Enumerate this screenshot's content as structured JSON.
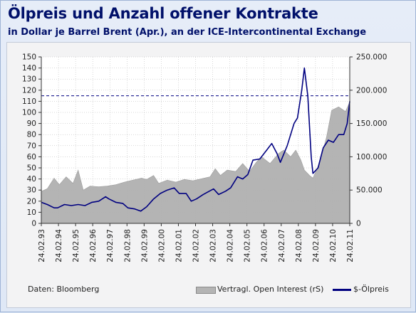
{
  "header": {
    "title": "Ölpreis und Anzahl offener Kontrakte",
    "subtitle": "in Dollar je Barrel Brent (Apr.), an der ICE-Intercontinental Exchange"
  },
  "footer": {
    "source": "Daten: Bloomberg",
    "legend_oi": "Vertragl. Open Interest (rS)",
    "legend_price": "$-Ölpreis"
  },
  "colors": {
    "price_line": "#000080",
    "oi_area": "#b4b4b4",
    "grid": "#b0b0b0",
    "reference_line": "#000080"
  },
  "chart_data": {
    "type": "line",
    "xlabel": "",
    "ylabel_left": "",
    "ylabel_right": "",
    "x_ticks": [
      "24.02.93",
      "24.02.94",
      "24.02.95",
      "24.02.96",
      "24.02.97",
      "24.02.98",
      "24.02.99",
      "24.02.00",
      "24.02.01",
      "24.02.02",
      "24.02.03",
      "24.02.04",
      "24.02.05",
      "24.02.06",
      "24.02.07",
      "24.02.08",
      "24.02.09",
      "24.02.10",
      "24.02.11"
    ],
    "y_left_ticks": [
      "0",
      "10",
      "20",
      "30",
      "40",
      "50",
      "60",
      "70",
      "80",
      "90",
      "100",
      "110",
      "120",
      "130",
      "140",
      "150"
    ],
    "y_right_ticks": [
      "0",
      "50.000",
      "100.000",
      "150.000",
      "200.000",
      "250.000"
    ],
    "ylim_left": [
      0,
      150
    ],
    "ylim_right": [
      0,
      250000
    ],
    "grid": true,
    "reference_line_y": 115,
    "series": [
      {
        "name": "$-Ölpreis",
        "axis": "left",
        "type": "line",
        "x": [
          1993.15,
          1993.5,
          1993.9,
          1994.1,
          1994.5,
          1994.9,
          1995.3,
          1995.7,
          1996.1,
          1996.5,
          1996.9,
          1997.1,
          1997.5,
          1997.9,
          1998.2,
          1998.6,
          1998.95,
          1999.3,
          1999.7,
          2000.1,
          2000.5,
          2000.9,
          2001.2,
          2001.6,
          2001.9,
          2002.2,
          2002.6,
          2002.95,
          2003.2,
          2003.5,
          2003.9,
          2004.2,
          2004.6,
          2004.9,
          2005.2,
          2005.5,
          2005.9,
          2006.2,
          2006.6,
          2006.9,
          2007.1,
          2007.5,
          2007.9,
          2008.1,
          2008.35,
          2008.5,
          2008.7,
          2008.9,
          2009.0,
          2009.3,
          2009.6,
          2009.9,
          2010.2,
          2010.5,
          2010.8,
          2011.0,
          2011.15
        ],
        "y": [
          19,
          17,
          14,
          14,
          17,
          16,
          17,
          16,
          19,
          20,
          24,
          22,
          19,
          18,
          14,
          13,
          11,
          15,
          22,
          27,
          30,
          32,
          27,
          27,
          20,
          22,
          26,
          29,
          31,
          26,
          29,
          32,
          42,
          40,
          44,
          57,
          58,
          64,
          72,
          63,
          55,
          70,
          90,
          95,
          120,
          140,
          115,
          60,
          45,
          50,
          68,
          75,
          73,
          80,
          80,
          90,
          110
        ]
      },
      {
        "name": "Vertragl. Open Interest (rS)",
        "axis": "right",
        "type": "area",
        "x": [
          1993.15,
          1993.5,
          1993.9,
          1994.2,
          1994.6,
          1995.0,
          1995.3,
          1995.6,
          1996.0,
          1996.5,
          1997.0,
          1997.5,
          1998.0,
          1998.5,
          1999.0,
          1999.3,
          1999.7,
          2000.0,
          2000.5,
          2001.0,
          2001.5,
          2002.0,
          2002.5,
          2003.0,
          2003.3,
          2003.6,
          2004.0,
          2004.5,
          2004.9,
          2005.3,
          2005.7,
          2006.0,
          2006.5,
          2007.0,
          2007.3,
          2007.7,
          2008.0,
          2008.3,
          2008.5,
          2008.8,
          2009.0,
          2009.4,
          2009.8,
          2010.1,
          2010.5,
          2010.9,
          2011.15
        ],
        "y": [
          48000,
          52000,
          68000,
          58000,
          70000,
          60000,
          80000,
          50000,
          56000,
          55000,
          56000,
          58000,
          62000,
          65000,
          68000,
          66000,
          72000,
          60000,
          65000,
          62000,
          66000,
          64000,
          67000,
          70000,
          82000,
          72000,
          80000,
          78000,
          90000,
          78000,
          92000,
          100000,
          90000,
          105000,
          110000,
          100000,
          110000,
          95000,
          80000,
          72000,
          68000,
          92000,
          130000,
          170000,
          175000,
          168000,
          182000
        ]
      }
    ]
  }
}
